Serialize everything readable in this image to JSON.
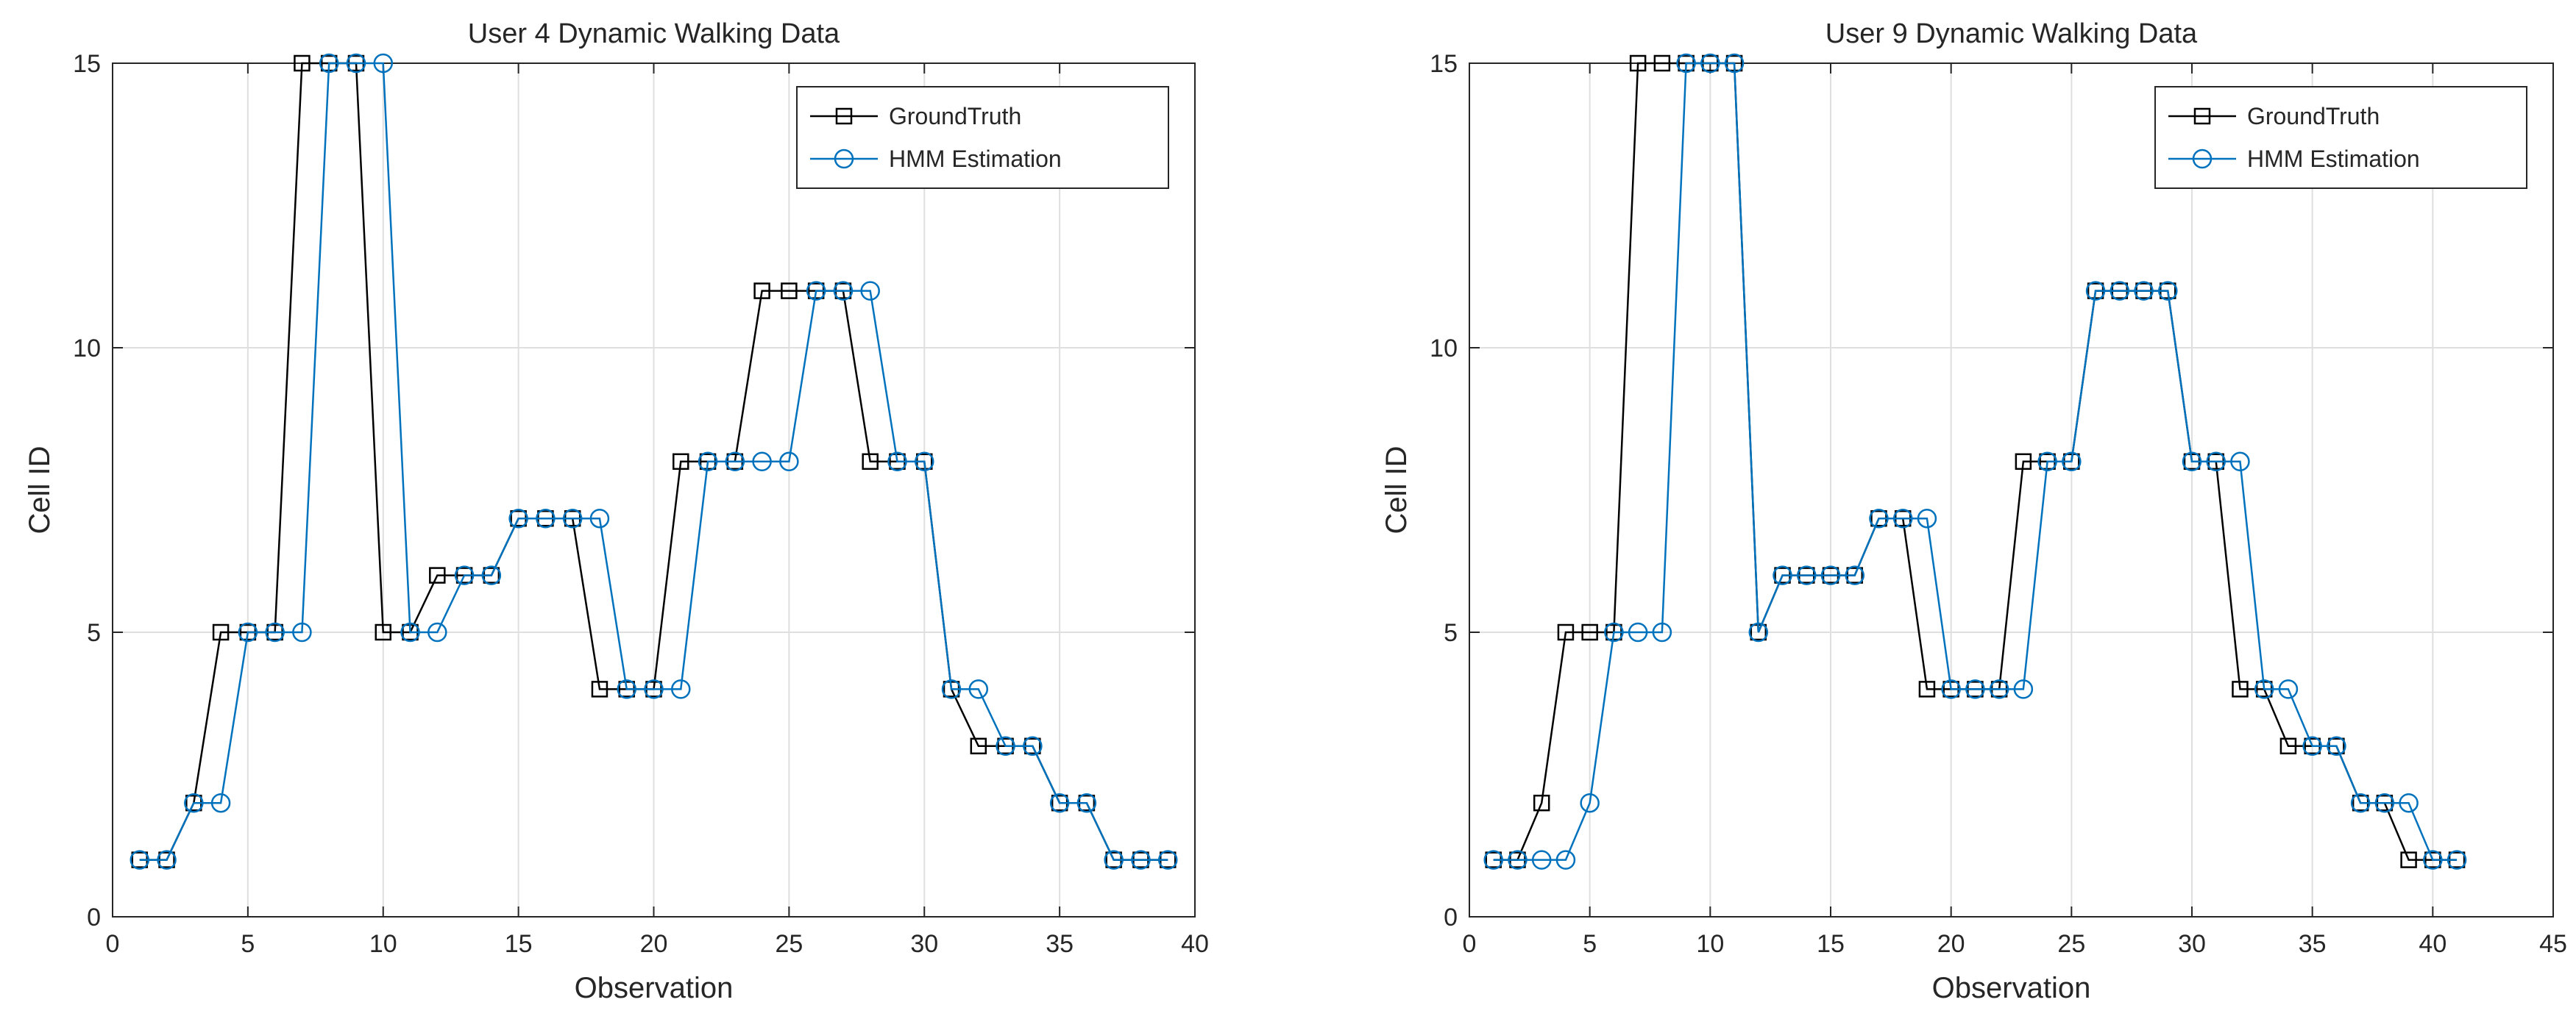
{
  "chart_data": [
    {
      "type": "line",
      "title": "User 4 Dynamic Walking Data",
      "xlabel": "Observation",
      "ylabel": "Cell ID",
      "xlim": [
        0,
        40
      ],
      "ylim": [
        0,
        15
      ],
      "xticks": [
        0,
        5,
        10,
        15,
        20,
        25,
        30,
        35,
        40
      ],
      "yticks": [
        0,
        5,
        10,
        15
      ],
      "grid": true,
      "legend_position": "top-right",
      "x": [
        1,
        2,
        3,
        4,
        5,
        6,
        7,
        8,
        9,
        10,
        11,
        12,
        13,
        14,
        15,
        16,
        17,
        18,
        19,
        20,
        21,
        22,
        23,
        24,
        25,
        26,
        27,
        28,
        29,
        30,
        31,
        32,
        33,
        34,
        35,
        36,
        37,
        38,
        39
      ],
      "series": [
        {
          "name": "GroundTruth",
          "color": "#000000",
          "marker": "square",
          "values": [
            1,
            1,
            2,
            5,
            5,
            5,
            15,
            15,
            15,
            5,
            5,
            6,
            6,
            6,
            7,
            7,
            7,
            4,
            4,
            4,
            8,
            8,
            8,
            11,
            11,
            11,
            11,
            8,
            8,
            8,
            4,
            3,
            3,
            3,
            2,
            2,
            1,
            1,
            1
          ]
        },
        {
          "name": "HMM Estimation",
          "color": "#0072BD",
          "marker": "circle",
          "values": [
            1,
            1,
            2,
            2,
            5,
            5,
            5,
            15,
            15,
            15,
            5,
            5,
            6,
            6,
            7,
            7,
            7,
            7,
            4,
            4,
            4,
            8,
            8,
            8,
            8,
            11,
            11,
            11,
            8,
            8,
            4,
            4,
            3,
            3,
            2,
            2,
            1,
            1,
            1
          ]
        }
      ]
    },
    {
      "type": "line",
      "title": "User 9 Dynamic Walking Data",
      "xlabel": "Observation",
      "ylabel": "Cell ID",
      "xlim": [
        0,
        45
      ],
      "ylim": [
        0,
        15
      ],
      "xticks": [
        0,
        5,
        10,
        15,
        20,
        25,
        30,
        35,
        40,
        45
      ],
      "yticks": [
        0,
        5,
        10,
        15
      ],
      "grid": true,
      "legend_position": "top-right",
      "x": [
        1,
        2,
        3,
        4,
        5,
        6,
        7,
        8,
        9,
        10,
        11,
        12,
        13,
        14,
        15,
        16,
        17,
        18,
        19,
        20,
        21,
        22,
        23,
        24,
        25,
        26,
        27,
        28,
        29,
        30,
        31,
        32,
        33,
        34,
        35,
        36,
        37,
        38,
        39,
        40,
        41
      ],
      "series": [
        {
          "name": "GroundTruth",
          "color": "#000000",
          "marker": "square",
          "values": [
            1,
            1,
            2,
            5,
            5,
            5,
            15,
            15,
            15,
            15,
            15,
            5,
            6,
            6,
            6,
            6,
            7,
            7,
            4,
            4,
            4,
            4,
            8,
            8,
            8,
            11,
            11,
            11,
            11,
            8,
            8,
            4,
            4,
            3,
            3,
            3,
            2,
            2,
            1,
            1,
            1
          ]
        },
        {
          "name": "HMM Estimation",
          "color": "#0072BD",
          "marker": "circle",
          "values": [
            1,
            1,
            1,
            1,
            2,
            5,
            5,
            5,
            15,
            15,
            15,
            5,
            6,
            6,
            6,
            6,
            7,
            7,
            7,
            4,
            4,
            4,
            4,
            8,
            8,
            11,
            11,
            11,
            11,
            8,
            8,
            8,
            4,
            4,
            3,
            3,
            2,
            2,
            2,
            1,
            1
          ]
        }
      ]
    }
  ]
}
